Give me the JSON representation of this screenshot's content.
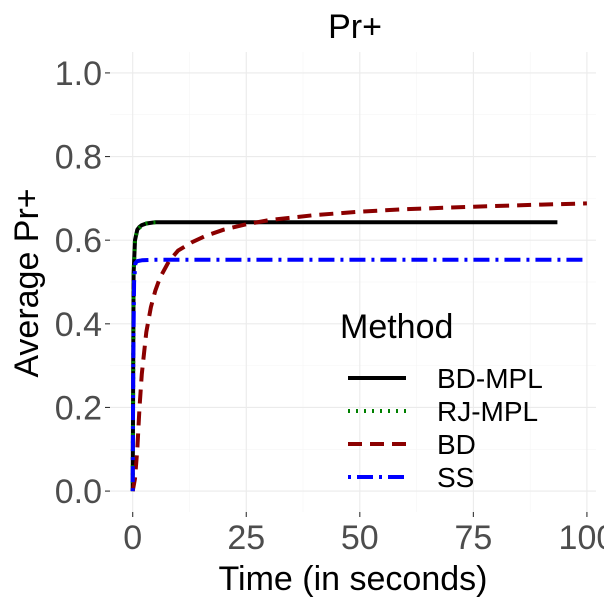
{
  "chart_data": {
    "type": "line",
    "title": "Pr+",
    "xlabel": "Time (in seconds)",
    "ylabel": "Average Pr+",
    "xlim": [
      -5,
      102
    ],
    "ylim": [
      -0.05,
      1.05
    ],
    "x_ticks": [
      0,
      25,
      50,
      75,
      100
    ],
    "x_tick_labels": [
      "0",
      "25",
      "50",
      "75",
      "100"
    ],
    "y_ticks": [
      0.0,
      0.2,
      0.4,
      0.6,
      0.8,
      1.0
    ],
    "y_tick_labels": [
      "0.0",
      "0.2",
      "0.4",
      "0.6",
      "0.8",
      "1.0"
    ],
    "grid": true,
    "legend": {
      "title": "Method",
      "position": "bottom-right",
      "entries": [
        "BD-MPL",
        "RJ-MPL",
        "BD",
        "SS"
      ]
    },
    "series": [
      {
        "name": "BD-MPL",
        "color": "#000000",
        "dash": "solid",
        "x": [
          0,
          0.2,
          0.5,
          1,
          1.5,
          2,
          3,
          5,
          10,
          25,
          50,
          75,
          93.5
        ],
        "y": [
          0.0,
          0.52,
          0.6,
          0.625,
          0.632,
          0.636,
          0.64,
          0.643,
          0.643,
          0.643,
          0.643,
          0.643,
          0.643
        ]
      },
      {
        "name": "RJ-MPL",
        "color": "#008000",
        "dash": "dotted",
        "x": [
          0,
          0.2,
          0.5,
          1,
          2,
          3,
          4,
          6
        ],
        "y": [
          0.0,
          0.52,
          0.6,
          0.625,
          0.635,
          0.64,
          0.642,
          0.643
        ]
      },
      {
        "name": "BD",
        "color": "#8b0000",
        "dash": "dashed",
        "x": [
          0,
          0.5,
          1,
          1.5,
          2,
          3,
          4,
          5,
          6,
          8,
          10,
          13,
          16,
          20,
          25,
          30,
          40,
          50,
          60,
          75,
          90,
          100
        ],
        "y": [
          0.0,
          0.03,
          0.1,
          0.2,
          0.28,
          0.38,
          0.44,
          0.48,
          0.51,
          0.55,
          0.575,
          0.595,
          0.61,
          0.625,
          0.638,
          0.648,
          0.66,
          0.668,
          0.674,
          0.68,
          0.685,
          0.688
        ]
      },
      {
        "name": "SS",
        "color": "#0000ff",
        "dash": "dotdash",
        "x": [
          0,
          0.1,
          0.3,
          0.6,
          1,
          2,
          5,
          25,
          50,
          75,
          100
        ],
        "y": [
          0.0,
          0.3,
          0.5,
          0.545,
          0.55,
          0.552,
          0.553,
          0.553,
          0.553,
          0.553,
          0.553
        ]
      }
    ]
  }
}
